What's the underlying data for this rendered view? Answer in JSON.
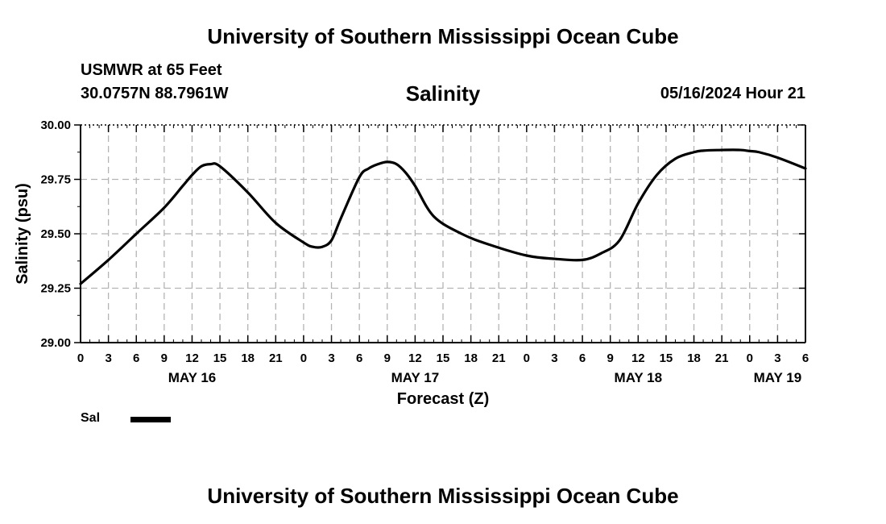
{
  "header": {
    "title": "University of Southern Mississippi Ocean Cube",
    "station": "USMWR at 65 Feet",
    "coords": "30.0757N  88.7961W",
    "datetime": "05/16/2024 Hour 21"
  },
  "footer": {
    "title": "University of Southern Mississippi Ocean Cube"
  },
  "legend": {
    "label": "Sal"
  },
  "chart_data": {
    "type": "line",
    "title": "Salinity",
    "xlabel": "Forecast (Z)",
    "ylabel": "Salinity (psu)",
    "xlim": [
      0,
      78
    ],
    "ylim": [
      29.0,
      30.0
    ],
    "x_ticks": [
      0,
      3,
      6,
      9,
      12,
      15,
      18,
      21,
      24,
      27,
      30,
      33,
      36,
      39,
      42,
      45,
      48,
      51,
      54,
      57,
      60,
      63,
      66,
      69,
      72,
      75,
      78
    ],
    "x_tick_labels": [
      "0",
      "3",
      "6",
      "9",
      "12",
      "15",
      "18",
      "21",
      "0",
      "3",
      "6",
      "9",
      "12",
      "15",
      "18",
      "21",
      "0",
      "3",
      "6",
      "9",
      "12",
      "15",
      "18",
      "21",
      "0",
      "3",
      "6"
    ],
    "y_ticks": [
      29.0,
      29.25,
      29.5,
      29.75,
      30.0
    ],
    "y_tick_labels": [
      "29.00",
      "29.25",
      "29.50",
      "29.75",
      "30.00"
    ],
    "date_labels": [
      {
        "hour": 12,
        "label": "MAY 16"
      },
      {
        "hour": 36,
        "label": "MAY 17"
      },
      {
        "hour": 60,
        "label": "MAY 18"
      },
      {
        "hour": 75,
        "label": "MAY 19"
      }
    ],
    "grid": true,
    "series": [
      {
        "name": "Sal",
        "color": "#000000",
        "x": [
          0,
          3,
          6,
          9,
          11,
          12,
          13,
          14,
          15,
          18,
          21,
          24,
          25,
          26,
          27,
          28,
          30,
          31,
          32,
          33,
          34,
          35,
          36,
          38,
          41,
          44,
          48,
          51,
          54,
          56,
          58,
          60,
          62,
          64,
          66,
          67,
          69,
          71,
          72,
          73,
          75,
          78
        ],
        "values": [
          29.27,
          29.38,
          29.5,
          29.62,
          29.72,
          29.77,
          29.81,
          29.82,
          29.81,
          29.69,
          29.55,
          29.46,
          29.44,
          29.44,
          29.47,
          29.57,
          29.76,
          29.8,
          29.82,
          29.83,
          29.82,
          29.78,
          29.72,
          29.58,
          29.5,
          29.45,
          29.4,
          29.385,
          29.38,
          29.41,
          29.47,
          29.64,
          29.77,
          29.845,
          29.875,
          29.882,
          29.885,
          29.885,
          29.88,
          29.875,
          29.85,
          29.8
        ]
      }
    ]
  }
}
